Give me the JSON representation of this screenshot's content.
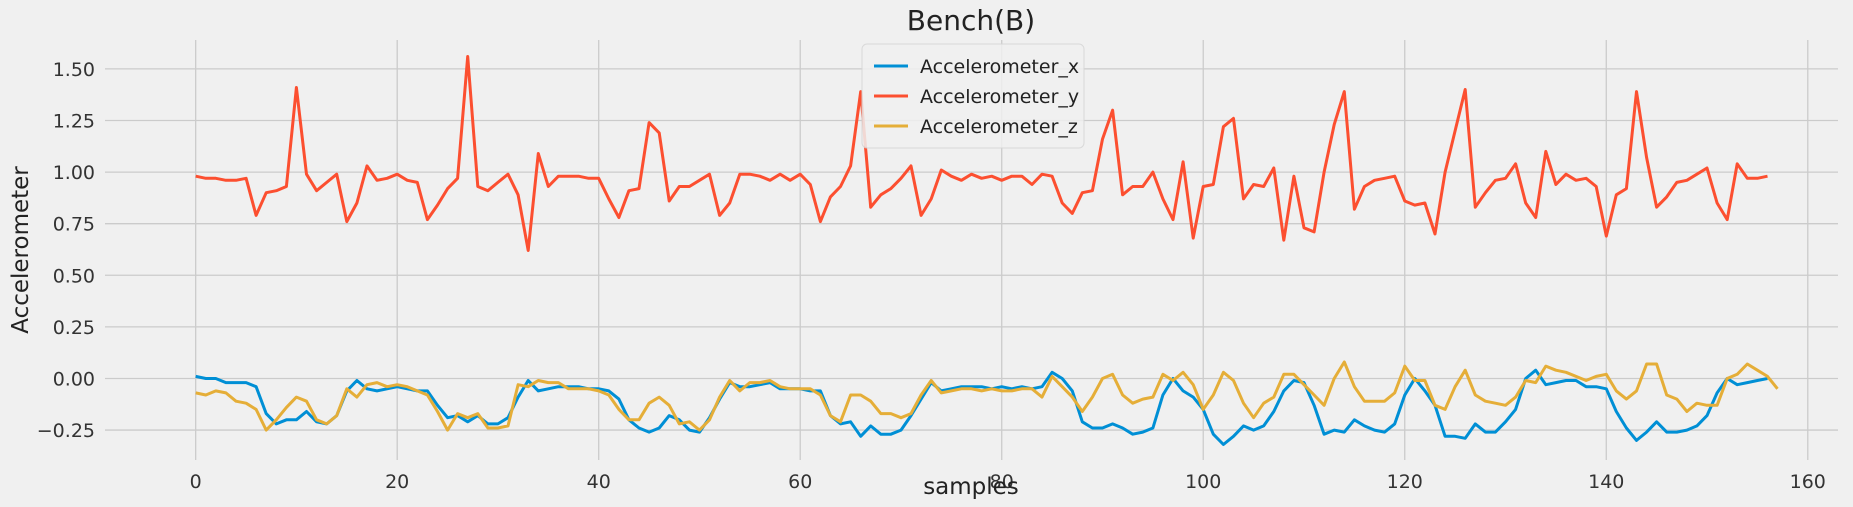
{
  "chart_data": {
    "type": "line",
    "title": "Bench(B)",
    "xlabel": "samples",
    "ylabel": "Accelerometer",
    "xlim": [
      -9,
      163
    ],
    "ylim": [
      -0.395,
      1.64
    ],
    "xticks": [
      0,
      20,
      40,
      60,
      80,
      100,
      120,
      140,
      160
    ],
    "yticks": [
      -0.25,
      0.0,
      0.25,
      0.5,
      0.75,
      1.0,
      1.25,
      1.5
    ],
    "ytick_labels": [
      "−0.25",
      "0.00",
      "0.25",
      "0.50",
      "0.75",
      "1.00",
      "1.25",
      "1.50"
    ],
    "grid": true,
    "legend_position": "upper-center",
    "series": [
      {
        "name": "Accelerometer_x",
        "color": "#008fd5",
        "values": [
          0.01,
          0.0,
          0.0,
          -0.02,
          -0.02,
          -0.02,
          -0.04,
          -0.17,
          -0.22,
          -0.2,
          -0.2,
          -0.16,
          -0.21,
          -0.22,
          -0.18,
          -0.06,
          -0.01,
          -0.05,
          -0.06,
          -0.05,
          -0.04,
          -0.05,
          -0.06,
          -0.06,
          -0.13,
          -0.19,
          -0.18,
          -0.21,
          -0.18,
          -0.22,
          -0.22,
          -0.19,
          -0.09,
          -0.01,
          -0.06,
          -0.05,
          -0.04,
          -0.04,
          -0.04,
          -0.05,
          -0.05,
          -0.06,
          -0.1,
          -0.2,
          -0.24,
          -0.26,
          -0.24,
          -0.18,
          -0.2,
          -0.25,
          -0.26,
          -0.19,
          -0.1,
          -0.02,
          -0.04,
          -0.04,
          -0.03,
          -0.02,
          -0.05,
          -0.05,
          -0.05,
          -0.06,
          -0.06,
          -0.18,
          -0.22,
          -0.21,
          -0.28,
          -0.23,
          -0.27,
          -0.27,
          -0.25,
          -0.18,
          -0.1,
          -0.02,
          -0.06,
          -0.05,
          -0.04,
          -0.04,
          -0.04,
          -0.05,
          -0.04,
          -0.05,
          -0.04,
          -0.05,
          -0.04,
          0.03,
          0.0,
          -0.06,
          -0.21,
          -0.24,
          -0.24,
          -0.22,
          -0.24,
          -0.27,
          -0.26,
          -0.24,
          -0.08,
          0.0,
          -0.06,
          -0.09,
          -0.15,
          -0.27,
          -0.32,
          -0.28,
          -0.23,
          -0.25,
          -0.23,
          -0.16,
          -0.06,
          -0.01,
          -0.02,
          -0.13,
          -0.27,
          -0.25,
          -0.26,
          -0.2,
          -0.23,
          -0.25,
          -0.26,
          -0.22,
          -0.08,
          0.0,
          -0.06,
          -0.13,
          -0.28,
          -0.28,
          -0.29,
          -0.22,
          -0.26,
          -0.26,
          -0.21,
          -0.15,
          0.0,
          0.04,
          -0.03,
          -0.02,
          -0.01,
          -0.01,
          -0.04,
          -0.04,
          -0.05,
          -0.16,
          -0.24,
          -0.3,
          -0.26,
          -0.21,
          -0.26,
          -0.26,
          -0.25,
          -0.23,
          -0.18,
          -0.07,
          0.0,
          -0.03,
          -0.02,
          -0.01,
          0.0
        ]
      },
      {
        "name": "Accelerometer_y",
        "color": "#fc4f30",
        "values": [
          0.98,
          0.97,
          0.97,
          0.96,
          0.96,
          0.97,
          0.79,
          0.9,
          0.91,
          0.93,
          1.41,
          0.99,
          0.91,
          0.95,
          0.99,
          0.76,
          0.85,
          1.03,
          0.96,
          0.97,
          0.99,
          0.96,
          0.95,
          0.77,
          0.84,
          0.92,
          0.97,
          1.56,
          0.93,
          0.91,
          0.95,
          0.99,
          0.89,
          0.62,
          1.09,
          0.93,
          0.98,
          0.98,
          0.98,
          0.97,
          0.97,
          0.87,
          0.78,
          0.91,
          0.92,
          1.24,
          1.19,
          0.86,
          0.93,
          0.93,
          0.96,
          0.99,
          0.79,
          0.85,
          0.99,
          0.99,
          0.98,
          0.96,
          0.99,
          0.96,
          0.99,
          0.94,
          0.76,
          0.88,
          0.93,
          1.03,
          1.39,
          0.83,
          0.89,
          0.92,
          0.97,
          1.03,
          0.79,
          0.87,
          1.01,
          0.98,
          0.96,
          0.99,
          0.97,
          0.98,
          0.96,
          0.98,
          0.98,
          0.94,
          0.99,
          0.98,
          0.85,
          0.8,
          0.9,
          0.91,
          1.16,
          1.3,
          0.89,
          0.93,
          0.93,
          1.0,
          0.87,
          0.77,
          1.05,
          0.68,
          0.93,
          0.94,
          1.22,
          1.26,
          0.87,
          0.94,
          0.93,
          1.02,
          0.67,
          0.98,
          0.73,
          0.71,
          1.0,
          1.23,
          1.39,
          0.82,
          0.93,
          0.96,
          0.97,
          0.98,
          0.86,
          0.84,
          0.85,
          0.7,
          1.0,
          1.2,
          1.4,
          0.83,
          0.9,
          0.96,
          0.97,
          1.04,
          0.85,
          0.78,
          1.1,
          0.94,
          0.99,
          0.96,
          0.97,
          0.93,
          0.69,
          0.89,
          0.92,
          1.39,
          1.07,
          0.83,
          0.88,
          0.95,
          0.96,
          0.99,
          1.02,
          0.85,
          0.77,
          1.04,
          0.97,
          0.97,
          0.98
        ]
      },
      {
        "name": "Accelerometer_z",
        "color": "#e5ae38",
        "values": [
          -0.07,
          -0.08,
          -0.06,
          -0.07,
          -0.11,
          -0.12,
          -0.15,
          -0.25,
          -0.2,
          -0.14,
          -0.09,
          -0.11,
          -0.2,
          -0.22,
          -0.18,
          -0.05,
          -0.09,
          -0.03,
          -0.02,
          -0.04,
          -0.03,
          -0.04,
          -0.06,
          -0.08,
          -0.16,
          -0.25,
          -0.17,
          -0.19,
          -0.17,
          -0.24,
          -0.24,
          -0.23,
          -0.03,
          -0.04,
          -0.01,
          -0.02,
          -0.02,
          -0.05,
          -0.05,
          -0.05,
          -0.06,
          -0.08,
          -0.15,
          -0.2,
          -0.2,
          -0.12,
          -0.09,
          -0.13,
          -0.22,
          -0.21,
          -0.25,
          -0.2,
          -0.09,
          -0.01,
          -0.06,
          -0.02,
          -0.02,
          -0.01,
          -0.04,
          -0.05,
          -0.05,
          -0.05,
          -0.08,
          -0.18,
          -0.21,
          -0.08,
          -0.08,
          -0.11,
          -0.17,
          -0.17,
          -0.19,
          -0.17,
          -0.08,
          -0.01,
          -0.07,
          -0.06,
          -0.05,
          -0.05,
          -0.06,
          -0.05,
          -0.06,
          -0.06,
          -0.05,
          -0.05,
          -0.09,
          0.01,
          -0.04,
          -0.09,
          -0.16,
          -0.09,
          0.0,
          0.02,
          -0.08,
          -0.12,
          -0.1,
          -0.09,
          0.02,
          -0.01,
          0.03,
          -0.03,
          -0.15,
          -0.08,
          0.03,
          -0.01,
          -0.12,
          -0.19,
          -0.12,
          -0.09,
          0.02,
          0.02,
          -0.03,
          -0.08,
          -0.13,
          0.0,
          0.08,
          -0.04,
          -0.11,
          -0.11,
          -0.11,
          -0.07,
          0.06,
          -0.01,
          -0.01,
          -0.13,
          -0.15,
          -0.04,
          0.04,
          -0.08,
          -0.11,
          -0.12,
          -0.13,
          -0.09,
          -0.01,
          -0.02,
          0.06,
          0.04,
          0.03,
          0.01,
          -0.01,
          0.01,
          0.02,
          -0.06,
          -0.1,
          -0.06,
          0.07,
          0.07,
          -0.08,
          -0.1,
          -0.16,
          -0.12,
          -0.13,
          -0.13,
          0.0,
          0.02,
          0.07,
          0.04,
          0.01,
          -0.05
        ]
      }
    ]
  }
}
